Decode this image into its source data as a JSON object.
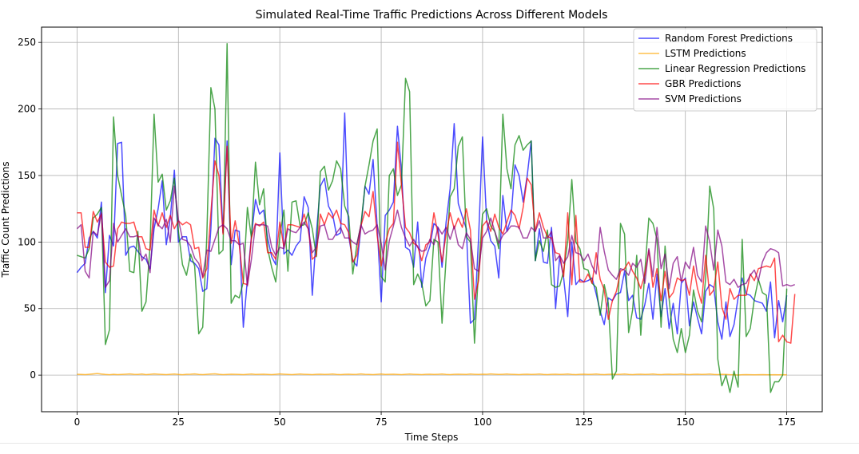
{
  "chart_data": {
    "type": "line",
    "title": "Simulated Real-Time Traffic Predictions Across Different Models",
    "xlabel": "Time Steps",
    "ylabel": "Traffic Count Predictions",
    "xlim": [
      -8.75,
      183.75
    ],
    "ylim": [
      -27.5,
      261.5
    ],
    "xticks": [
      0,
      25,
      50,
      75,
      100,
      125,
      150,
      175
    ],
    "yticks": [
      0,
      50,
      100,
      150,
      200,
      250
    ],
    "grid": true,
    "legend_position": "top-right",
    "x_start": 0,
    "x_step": 1,
    "series": [
      {
        "name": "Random Forest Predictions",
        "color": "#0000ff",
        "values": [
          77,
          81,
          84,
          103,
          108,
          103,
          130,
          62,
          105,
          97,
          174,
          175,
          90,
          96,
          97,
          93,
          89,
          87,
          80,
          110,
          125,
          146,
          98,
          118,
          154,
          100,
          104,
          104,
          86,
          84,
          80,
          63,
          65,
          110,
          178,
          173,
          107,
          176,
          83,
          109,
          108,
          36,
          72,
          104,
          132,
          121,
          124,
          103,
          89,
          83,
          167,
          91,
          94,
          90,
          97,
          101,
          134,
          126,
          60,
          106,
          142,
          148,
          127,
          121,
          105,
          107,
          197,
          104,
          86,
          82,
          111,
          142,
          136,
          162,
          112,
          55,
          120,
          124,
          130,
          187,
          154,
          96,
          94,
          81,
          115,
          66,
          88,
          97,
          114,
          111,
          81,
          115,
          140,
          189,
          129,
          119,
          110,
          39,
          42,
          103,
          179,
          116,
          101,
          97,
          73,
          135,
          108,
          118,
          158,
          150,
          130,
          150,
          176,
          86,
          110,
          85,
          84,
          111,
          50,
          89,
          73,
          44,
          100,
          68,
          72,
          70,
          71,
          73,
          61,
          48,
          38,
          58,
          56,
          61,
          62,
          78,
          56,
          60,
          43,
          42,
          53,
          69,
          42,
          76,
          44,
          65,
          35,
          54,
          31,
          69,
          73,
          37,
          55,
          43,
          31,
          63,
          68,
          66,
          40,
          27,
          55,
          29,
          38,
          58,
          73,
          61,
          60,
          56,
          55,
          54,
          48,
          70,
          28,
          56,
          40,
          60
        ]
      },
      {
        "name": "LSTM Predictions",
        "color": "#ffa500",
        "values": [
          0.6,
          0.5,
          0.4,
          0.6,
          0.9,
          1.2,
          0.8,
          0.5,
          0.3,
          0.6,
          0.4,
          0.5,
          0.7,
          0.9,
          0.6,
          0.5,
          0.8,
          0.4,
          0.6,
          0.9,
          0.7,
          0.5,
          0.4,
          0.6,
          0.8,
          0.5,
          0.3,
          0.6,
          0.7,
          0.9,
          0.5,
          0.4,
          0.6,
          0.8,
          1.0,
          0.6,
          0.4,
          0.5,
          0.7,
          0.6,
          0.5,
          0.4,
          0.6,
          0.8,
          0.5,
          0.6,
          0.7,
          0.5,
          0.4,
          0.6,
          0.9,
          0.7,
          0.5,
          0.4,
          0.6,
          0.8,
          0.6,
          0.5,
          0.4,
          0.6,
          0.7,
          0.5,
          0.6,
          0.8,
          0.5,
          0.4,
          0.6,
          0.7,
          0.5,
          0.6,
          0.9,
          0.6,
          0.5,
          0.4,
          0.6,
          0.8,
          0.5,
          0.6,
          0.7,
          0.5,
          0.4,
          0.6,
          0.8,
          0.6,
          0.5,
          0.4,
          0.6,
          0.7,
          0.5,
          0.6,
          0.8,
          0.5,
          0.4,
          0.6,
          0.7,
          0.6,
          0.5,
          0.8,
          0.6,
          0.5,
          0.7,
          0.6,
          0.9,
          0.7,
          0.5,
          0.6,
          0.8,
          0.6,
          0.5,
          0.4,
          0.6,
          0.7,
          0.5,
          0.6,
          0.8,
          0.5,
          0.4,
          0.6,
          0.7,
          0.5,
          0.6,
          0.8,
          0.5,
          0.4,
          0.6,
          0.7,
          0.5,
          0.6,
          0.8,
          0.5,
          0.4,
          0.6,
          0.7,
          0.5,
          0.6,
          0.8,
          0.5,
          0.4,
          0.6,
          0.7,
          0.5,
          0.6,
          0.8,
          0.5,
          0.4,
          0.6,
          0.7,
          0.5,
          0.6,
          0.8,
          0.5,
          0.4,
          0.6,
          0.7,
          0.5,
          0.6,
          0.8,
          0.5,
          0.4,
          0.6,
          0.5,
          0.3,
          0.2,
          0.1,
          0.3,
          0.4,
          0.3,
          0.2,
          0.3,
          0.4,
          0.3,
          0.2,
          0.3,
          0.2,
          0.3,
          0.2
        ]
      },
      {
        "name": "Linear Regression Predictions",
        "color": "#008000",
        "values": [
          90,
          89,
          88,
          95,
          118,
          121,
          126,
          23,
          34,
          194,
          150,
          135,
          120,
          78,
          77,
          108,
          48,
          55,
          97,
          196,
          145,
          151,
          124,
          131,
          148,
          108,
          83,
          75,
          91,
          82,
          31,
          36,
          104,
          216,
          200,
          91,
          94,
          249,
          54,
          60,
          58,
          70,
          126,
          103,
          160,
          128,
          140,
          95,
          81,
          70,
          105,
          124,
          78,
          130,
          131,
          112,
          113,
          122,
          110,
          89,
          153,
          157,
          139,
          146,
          161,
          155,
          127,
          119,
          76,
          98,
          113,
          142,
          158,
          176,
          185,
          74,
          70,
          150,
          155,
          135,
          143,
          223,
          213,
          68,
          76,
          69,
          52,
          56,
          102,
          100,
          39,
          88,
          134,
          140,
          172,
          179,
          104,
          100,
          24,
          79,
          121,
          125,
          112,
          108,
          95,
          196,
          155,
          140,
          173,
          180,
          169,
          173,
          176,
          86,
          101,
          93,
          109,
          68,
          66,
          67,
          78,
          101,
          147,
          100,
          95,
          80,
          79,
          69,
          66,
          45,
          68,
          54,
          -3,
          3,
          114,
          106,
          32,
          49,
          90,
          30,
          78,
          118,
          114,
          102,
          36,
          97,
          57,
          27,
          17,
          35,
          17,
          30,
          64,
          48,
          40,
          73,
          142,
          125,
          12,
          -8,
          0,
          -13,
          3,
          -9,
          102,
          29,
          35,
          57,
          72,
          62,
          60,
          -13,
          -5,
          -5,
          0,
          65
        ]
      },
      {
        "name": "GBR Predictions",
        "color": "#ff0000",
        "values": [
          122,
          122,
          96,
          96,
          123,
          115,
          121,
          85,
          81,
          82,
          110,
          115,
          114,
          114,
          115,
          104,
          104,
          95,
          94,
          124,
          112,
          122,
          111,
          120,
          110,
          116,
          113,
          115,
          113,
          95,
          96,
          73,
          80,
          122,
          161,
          150,
          106,
          172,
          99,
          116,
          98,
          69,
          68,
          103,
          114,
          112,
          115,
          92,
          92,
          87,
          115,
          96,
          113,
          113,
          112,
          111,
          121,
          110,
          87,
          90,
          121,
          113,
          122,
          118,
          124,
          114,
          113,
          107,
          85,
          90,
          112,
          123,
          119,
          138,
          105,
          82,
          99,
          110,
          114,
          175,
          143,
          111,
          107,
          99,
          97,
          86,
          98,
          100,
          122,
          106,
          85,
          106,
          122,
          110,
          118,
          111,
          125,
          109,
          57,
          71,
          112,
          116,
          108,
          121,
          111,
          106,
          115,
          124,
          120,
          110,
          126,
          148,
          143,
          108,
          122,
          111,
          104,
          103,
          92,
          91,
          74,
          122,
          68,
          120,
          70,
          70,
          76,
          69,
          92,
          72,
          64,
          42,
          56,
          63,
          78,
          80,
          85,
          78,
          73,
          65,
          76,
          94,
          66,
          80,
          56,
          78,
          58,
          62,
          73,
          71,
          72,
          60,
          82,
          65,
          54,
          90,
          60,
          64,
          85,
          51,
          42,
          65,
          57,
          60,
          60,
          60,
          76,
          71,
          80,
          81,
          82,
          81,
          88,
          25,
          30,
          25,
          24,
          61
        ]
      },
      {
        "name": "SVM Predictions",
        "color": "#800080",
        "values": [
          110,
          113,
          78,
          73,
          108,
          105,
          122,
          66,
          71,
          114,
          100,
          105,
          110,
          104,
          104,
          105,
          86,
          91,
          77,
          118,
          113,
          110,
          117,
          100,
          142,
          117,
          102,
          101,
          97,
          88,
          84,
          74,
          94,
          93,
          102,
          111,
          113,
          110,
          101,
          101,
          98,
          99,
          67,
          87,
          113,
          113,
          113,
          112,
          96,
          90,
          96,
          95,
          110,
          108,
          107,
          111,
          115,
          110,
          92,
          96,
          112,
          113,
          102,
          102,
          107,
          111,
          103,
          103,
          100,
          98,
          113,
          106,
          108,
          109,
          113,
          99,
          79,
          101,
          112,
          124,
          111,
          103,
          97,
          102,
          96,
          93,
          94,
          102,
          98,
          111,
          106,
          111,
          102,
          112,
          98,
          95,
          107,
          102,
          80,
          78,
          103,
          108,
          118,
          108,
          99,
          105,
          108,
          112,
          112,
          111,
          103,
          103,
          111,
          108,
          116,
          103,
          103,
          108,
          86,
          90,
          84,
          89,
          105,
          92,
          91,
          86,
          91,
          82,
          76,
          111,
          93,
          79,
          75,
          72,
          80,
          79,
          75,
          84,
          81,
          87,
          69,
          95,
          74,
          111,
          80,
          91,
          65,
          84,
          89,
          70,
          85,
          80,
          96,
          75,
          70,
          112,
          100,
          79,
          109,
          97,
          70,
          68,
          72,
          66,
          68,
          69,
          75,
          79,
          71,
          85,
          92,
          95,
          94,
          92,
          67,
          68,
          67,
          68
        ]
      }
    ]
  }
}
